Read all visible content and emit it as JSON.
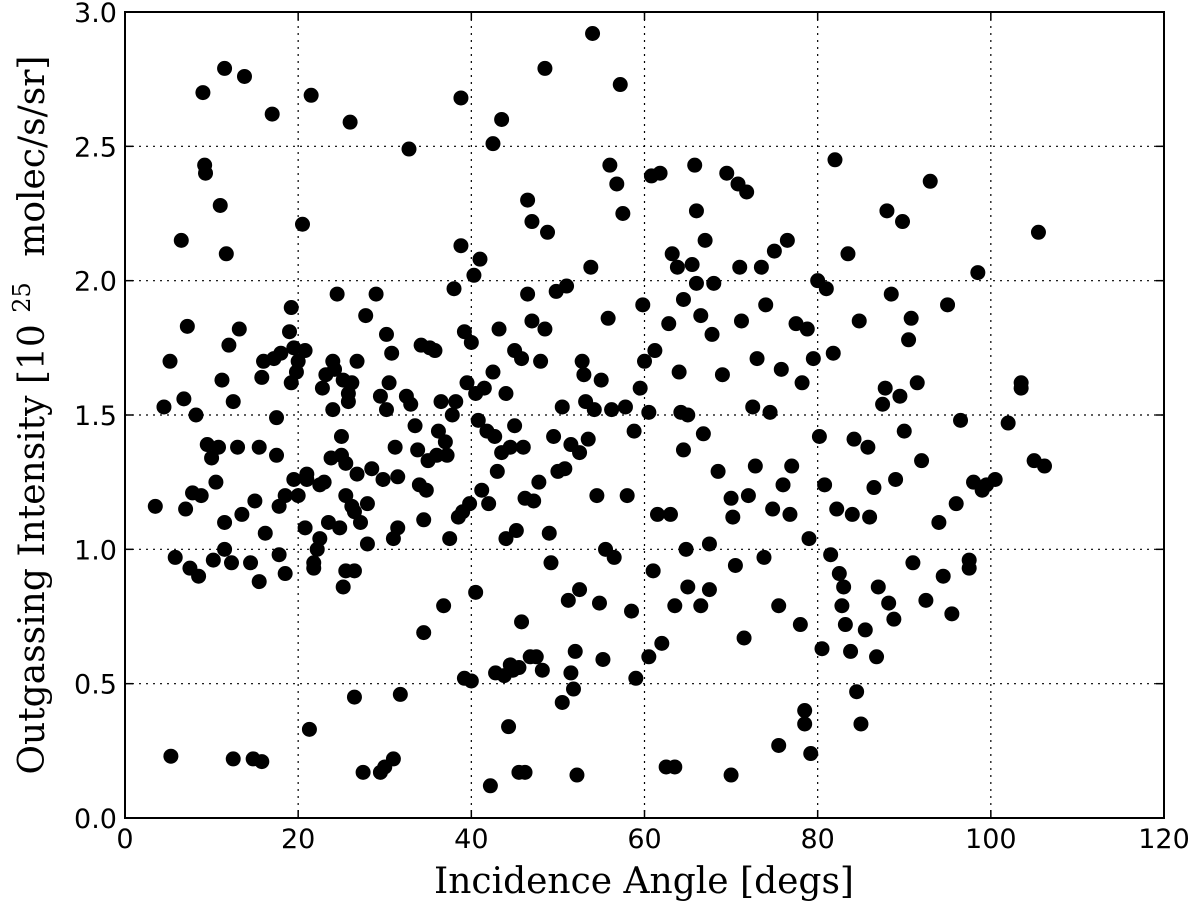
{
  "chart_data": {
    "type": "scatter",
    "title": "",
    "xlabel": "Incidence Angle [degs]",
    "ylabel_main": "Outgassing Intensity [10",
    "ylabel_sup": "25",
    "ylabel_tail": "molec/s/sr]",
    "xlim": [
      0,
      120
    ],
    "ylim": [
      0.0,
      3.0
    ],
    "xticks": [
      0,
      20,
      40,
      60,
      80,
      100,
      120
    ],
    "xtick_labels": [
      "0",
      "20",
      "40",
      "60",
      "80",
      "100",
      "120"
    ],
    "yticks": [
      0.0,
      0.5,
      1.0,
      1.5,
      2.0,
      2.5,
      3.0
    ],
    "ytick_labels": [
      "0.0",
      "0.5",
      "1.0",
      "1.5",
      "2.0",
      "2.5",
      "3.0"
    ],
    "grid": true,
    "marker_color": "#000000",
    "points": [
      [
        3.5,
        1.16
      ],
      [
        4.5,
        1.53
      ],
      [
        5.2,
        1.7
      ],
      [
        5.3,
        0.23
      ],
      [
        5.8,
        0.97
      ],
      [
        6.5,
        2.15
      ],
      [
        6.8,
        1.56
      ],
      [
        7.0,
        1.15
      ],
      [
        7.2,
        1.83
      ],
      [
        7.5,
        0.93
      ],
      [
        7.8,
        1.21
      ],
      [
        8.2,
        1.5
      ],
      [
        8.5,
        0.9
      ],
      [
        8.8,
        1.2
      ],
      [
        9.0,
        2.7
      ],
      [
        9.2,
        2.43
      ],
      [
        9.3,
        2.4
      ],
      [
        9.5,
        1.39
      ],
      [
        10.0,
        1.34
      ],
      [
        10.2,
        0.96
      ],
      [
        10.5,
        1.25
      ],
      [
        10.8,
        1.38
      ],
      [
        11.0,
        2.28
      ],
      [
        11.2,
        1.63
      ],
      [
        11.5,
        1.1
      ],
      [
        11.5,
        2.79
      ],
      [
        11.5,
        1.0
      ],
      [
        11.7,
        2.1
      ],
      [
        12.0,
        1.76
      ],
      [
        12.3,
        0.95
      ],
      [
        12.5,
        1.55
      ],
      [
        12.5,
        0.22
      ],
      [
        13.0,
        1.38
      ],
      [
        13.2,
        1.82
      ],
      [
        13.5,
        1.13
      ],
      [
        13.8,
        2.76
      ],
      [
        14.5,
        0.95
      ],
      [
        14.8,
        0.22
      ],
      [
        15.0,
        1.18
      ],
      [
        15.5,
        0.88
      ],
      [
        15.5,
        1.38
      ],
      [
        15.8,
        0.21
      ],
      [
        15.8,
        1.64
      ],
      [
        16.0,
        1.7
      ],
      [
        16.2,
        1.06
      ],
      [
        17.0,
        2.62
      ],
      [
        17.2,
        1.71
      ],
      [
        17.5,
        1.35
      ],
      [
        17.5,
        1.49
      ],
      [
        17.8,
        1.16
      ],
      [
        17.8,
        0.98
      ],
      [
        18.0,
        1.73
      ],
      [
        18.5,
        1.2
      ],
      [
        18.5,
        0.91
      ],
      [
        19.0,
        1.81
      ],
      [
        19.2,
        1.9
      ],
      [
        19.2,
        1.62
      ],
      [
        19.5,
        1.26
      ],
      [
        19.5,
        1.75
      ],
      [
        19.8,
        1.66
      ],
      [
        20.0,
        1.2
      ],
      [
        20.0,
        1.7
      ],
      [
        20.5,
        2.21
      ],
      [
        20.8,
        1.74
      ],
      [
        20.8,
        1.08
      ],
      [
        21.0,
        1.28
      ],
      [
        21.0,
        1.26
      ],
      [
        21.3,
        0.33
      ],
      [
        21.5,
        2.69
      ],
      [
        21.8,
        0.95
      ],
      [
        21.8,
        0.93
      ],
      [
        22.2,
        1.0
      ],
      [
        22.5,
        1.24
      ],
      [
        22.5,
        1.04
      ],
      [
        22.8,
        1.6
      ],
      [
        23.0,
        1.25
      ],
      [
        23.2,
        1.65
      ],
      [
        23.5,
        1.1
      ],
      [
        23.8,
        1.34
      ],
      [
        24.0,
        1.7
      ],
      [
        24.0,
        1.52
      ],
      [
        24.2,
        1.67
      ],
      [
        24.5,
        1.95
      ],
      [
        24.8,
        1.08
      ],
      [
        25.0,
        1.35
      ],
      [
        25.0,
        1.42
      ],
      [
        25.2,
        1.63
      ],
      [
        25.2,
        0.86
      ],
      [
        25.5,
        1.2
      ],
      [
        25.5,
        0.92
      ],
      [
        25.5,
        1.32
      ],
      [
        25.8,
        1.58
      ],
      [
        25.8,
        1.55
      ],
      [
        26.0,
        2.59
      ],
      [
        26.2,
        1.62
      ],
      [
        26.2,
        1.16
      ],
      [
        26.5,
        0.45
      ],
      [
        26.5,
        1.14
      ],
      [
        26.5,
        0.92
      ],
      [
        26.8,
        1.7
      ],
      [
        26.8,
        1.28
      ],
      [
        27.2,
        1.1
      ],
      [
        27.5,
        0.17
      ],
      [
        27.8,
        1.87
      ],
      [
        28.0,
        1.17
      ],
      [
        28.0,
        1.02
      ],
      [
        28.5,
        1.3
      ],
      [
        29.0,
        1.95
      ],
      [
        29.5,
        1.57
      ],
      [
        29.5,
        0.17
      ],
      [
        29.8,
        1.26
      ],
      [
        30.0,
        0.19
      ],
      [
        30.2,
        1.8
      ],
      [
        30.2,
        1.52
      ],
      [
        30.5,
        1.62
      ],
      [
        30.8,
        1.73
      ],
      [
        31.0,
        0.22
      ],
      [
        31.0,
        1.04
      ],
      [
        31.2,
        1.38
      ],
      [
        31.5,
        1.27
      ],
      [
        31.5,
        1.08
      ],
      [
        31.8,
        0.46
      ],
      [
        32.5,
        1.57
      ],
      [
        32.8,
        2.49
      ],
      [
        33.0,
        1.54
      ],
      [
        33.5,
        1.46
      ],
      [
        33.8,
        1.37
      ],
      [
        34.0,
        1.24
      ],
      [
        34.2,
        1.76
      ],
      [
        34.5,
        0.69
      ],
      [
        34.5,
        1.11
      ],
      [
        34.8,
        1.22
      ],
      [
        35.0,
        1.33
      ],
      [
        35.2,
        1.75
      ],
      [
        35.8,
        1.74
      ],
      [
        36.0,
        1.35
      ],
      [
        36.2,
        1.44
      ],
      [
        36.5,
        1.55
      ],
      [
        36.8,
        0.79
      ],
      [
        37.0,
        1.4
      ],
      [
        37.2,
        1.35
      ],
      [
        37.5,
        1.04
      ],
      [
        37.8,
        1.5
      ],
      [
        38.0,
        1.97
      ],
      [
        38.2,
        1.55
      ],
      [
        38.5,
        1.12
      ],
      [
        38.8,
        2.68
      ],
      [
        38.8,
        2.13
      ],
      [
        39.0,
        1.14
      ],
      [
        39.2,
        1.81
      ],
      [
        39.2,
        0.52
      ],
      [
        39.5,
        1.62
      ],
      [
        39.8,
        1.17
      ],
      [
        40.0,
        1.77
      ],
      [
        40.0,
        0.51
      ],
      [
        40.3,
        2.02
      ],
      [
        40.5,
        1.58
      ],
      [
        40.5,
        0.84
      ],
      [
        40.8,
        1.48
      ],
      [
        41.0,
        2.08
      ],
      [
        41.2,
        1.22
      ],
      [
        41.5,
        1.6
      ],
      [
        41.8,
        1.44
      ],
      [
        42.0,
        1.17
      ],
      [
        42.2,
        0.12
      ],
      [
        42.5,
        1.66
      ],
      [
        42.5,
        2.51
      ],
      [
        42.7,
        1.42
      ],
      [
        42.8,
        0.54
      ],
      [
        43.0,
        1.29
      ],
      [
        43.2,
        1.82
      ],
      [
        43.5,
        2.6
      ],
      [
        43.5,
        1.36
      ],
      [
        43.8,
        0.53
      ],
      [
        44.0,
        1.58
      ],
      [
        44.0,
        1.04
      ],
      [
        44.3,
        0.34
      ],
      [
        44.5,
        0.57
      ],
      [
        44.5,
        1.38
      ],
      [
        44.8,
        0.55
      ],
      [
        45.0,
        1.74
      ],
      [
        45.0,
        1.46
      ],
      [
        45.2,
        1.07
      ],
      [
        45.5,
        0.17
      ],
      [
        45.5,
        0.56
      ],
      [
        45.8,
        0.73
      ],
      [
        45.8,
        1.71
      ],
      [
        46.0,
        1.38
      ],
      [
        46.2,
        0.17
      ],
      [
        46.2,
        1.19
      ],
      [
        46.5,
        2.3
      ],
      [
        46.5,
        1.95
      ],
      [
        46.8,
        0.6
      ],
      [
        47.0,
        1.85
      ],
      [
        47.0,
        2.22
      ],
      [
        47.2,
        1.18
      ],
      [
        47.5,
        0.6
      ],
      [
        47.8,
        1.25
      ],
      [
        48.0,
        1.7
      ],
      [
        48.2,
        0.55
      ],
      [
        48.5,
        1.82
      ],
      [
        48.5,
        2.79
      ],
      [
        48.8,
        2.18
      ],
      [
        49.0,
        1.06
      ],
      [
        49.2,
        0.95
      ],
      [
        49.5,
        1.42
      ],
      [
        49.8,
        1.96
      ],
      [
        50.0,
        1.29
      ],
      [
        50.5,
        1.53
      ],
      [
        50.5,
        0.43
      ],
      [
        50.8,
        1.3
      ],
      [
        51.0,
        1.98
      ],
      [
        51.2,
        0.81
      ],
      [
        51.5,
        0.54
      ],
      [
        51.5,
        1.39
      ],
      [
        51.8,
        0.48
      ],
      [
        52.0,
        0.62
      ],
      [
        52.2,
        0.16
      ],
      [
        52.5,
        1.36
      ],
      [
        52.5,
        0.85
      ],
      [
        52.8,
        1.7
      ],
      [
        53.0,
        1.65
      ],
      [
        53.2,
        1.55
      ],
      [
        53.5,
        1.41
      ],
      [
        53.8,
        2.05
      ],
      [
        54.0,
        2.92
      ],
      [
        54.2,
        1.52
      ],
      [
        54.5,
        1.2
      ],
      [
        54.8,
        0.8
      ],
      [
        55.0,
        1.63
      ],
      [
        55.2,
        0.59
      ],
      [
        55.5,
        1.0
      ],
      [
        55.8,
        1.86
      ],
      [
        56.0,
        2.43
      ],
      [
        56.2,
        1.52
      ],
      [
        56.5,
        0.97
      ],
      [
        56.8,
        2.36
      ],
      [
        57.2,
        2.73
      ],
      [
        57.5,
        2.25
      ],
      [
        57.8,
        1.53
      ],
      [
        58.0,
        1.2
      ],
      [
        58.5,
        0.77
      ],
      [
        58.8,
        1.44
      ],
      [
        59.0,
        0.52
      ],
      [
        59.5,
        1.6
      ],
      [
        59.8,
        1.91
      ],
      [
        60.0,
        1.7
      ],
      [
        60.5,
        1.51
      ],
      [
        60.5,
        0.6
      ],
      [
        60.8,
        2.39
      ],
      [
        61.0,
        0.92
      ],
      [
        61.2,
        1.74
      ],
      [
        61.5,
        1.13
      ],
      [
        61.8,
        2.4
      ],
      [
        62.0,
        0.65
      ],
      [
        62.5,
        0.19
      ],
      [
        62.8,
        1.84
      ],
      [
        63.0,
        1.13
      ],
      [
        63.2,
        2.1
      ],
      [
        63.5,
        0.79
      ],
      [
        63.5,
        0.19
      ],
      [
        63.8,
        2.05
      ],
      [
        64.0,
        1.66
      ],
      [
        64.2,
        1.51
      ],
      [
        64.5,
        1.37
      ],
      [
        64.5,
        1.93
      ],
      [
        64.8,
        1.0
      ],
      [
        65.0,
        1.5
      ],
      [
        65.0,
        0.86
      ],
      [
        65.5,
        2.06
      ],
      [
        65.8,
        2.43
      ],
      [
        66.0,
        1.99
      ],
      [
        66.0,
        2.26
      ],
      [
        66.5,
        0.79
      ],
      [
        66.5,
        1.87
      ],
      [
        66.8,
        1.43
      ],
      [
        67.0,
        2.15
      ],
      [
        67.5,
        0.85
      ],
      [
        67.5,
        1.02
      ],
      [
        67.8,
        1.8
      ],
      [
        68.0,
        1.99
      ],
      [
        68.5,
        1.29
      ],
      [
        69.0,
        1.65
      ],
      [
        69.5,
        2.4
      ],
      [
        70.0,
        0.16
      ],
      [
        70.0,
        1.19
      ],
      [
        70.2,
        1.12
      ],
      [
        70.5,
        0.94
      ],
      [
        70.8,
        2.36
      ],
      [
        71.0,
        2.05
      ],
      [
        71.2,
        1.85
      ],
      [
        71.5,
        0.67
      ],
      [
        71.8,
        2.33
      ],
      [
        72.0,
        1.2
      ],
      [
        72.5,
        1.53
      ],
      [
        72.8,
        1.31
      ],
      [
        73.0,
        1.71
      ],
      [
        73.5,
        2.05
      ],
      [
        73.8,
        0.97
      ],
      [
        74.0,
        1.91
      ],
      [
        74.5,
        1.51
      ],
      [
        74.8,
        1.15
      ],
      [
        75.0,
        2.11
      ],
      [
        75.5,
        0.27
      ],
      [
        75.5,
        0.79
      ],
      [
        75.8,
        1.67
      ],
      [
        76.0,
        1.24
      ],
      [
        76.5,
        2.15
      ],
      [
        76.8,
        1.13
      ],
      [
        77.0,
        1.31
      ],
      [
        77.5,
        1.84
      ],
      [
        78.0,
        0.72
      ],
      [
        78.2,
        1.62
      ],
      [
        78.5,
        0.4
      ],
      [
        78.5,
        0.35
      ],
      [
        78.8,
        1.82
      ],
      [
        79.0,
        1.04
      ],
      [
        79.2,
        0.24
      ],
      [
        79.5,
        1.71
      ],
      [
        80.0,
        2.0
      ],
      [
        80.2,
        1.42
      ],
      [
        80.5,
        0.63
      ],
      [
        80.8,
        1.24
      ],
      [
        81.0,
        1.97
      ],
      [
        81.5,
        0.98
      ],
      [
        81.8,
        1.73
      ],
      [
        82.0,
        2.45
      ],
      [
        82.2,
        1.15
      ],
      [
        82.5,
        0.91
      ],
      [
        82.8,
        0.79
      ],
      [
        83.0,
        0.86
      ],
      [
        83.2,
        0.72
      ],
      [
        83.5,
        2.1
      ],
      [
        83.8,
        0.62
      ],
      [
        84.0,
        1.13
      ],
      [
        84.2,
        1.41
      ],
      [
        84.5,
        0.47
      ],
      [
        84.8,
        1.85
      ],
      [
        85.0,
        0.35
      ],
      [
        85.5,
        0.7
      ],
      [
        85.8,
        1.38
      ],
      [
        86.0,
        1.12
      ],
      [
        86.5,
        1.23
      ],
      [
        86.8,
        0.6
      ],
      [
        87.0,
        0.86
      ],
      [
        87.5,
        1.54
      ],
      [
        87.8,
        1.6
      ],
      [
        88.0,
        2.26
      ],
      [
        88.2,
        0.8
      ],
      [
        88.5,
        1.95
      ],
      [
        88.8,
        0.74
      ],
      [
        89.0,
        1.26
      ],
      [
        89.5,
        1.57
      ],
      [
        89.8,
        2.22
      ],
      [
        90.0,
        1.44
      ],
      [
        90.5,
        1.78
      ],
      [
        90.8,
        1.86
      ],
      [
        91.0,
        0.95
      ],
      [
        91.5,
        1.62
      ],
      [
        92.0,
        1.33
      ],
      [
        92.5,
        0.81
      ],
      [
        93.0,
        2.37
      ],
      [
        94.0,
        1.1
      ],
      [
        94.5,
        0.9
      ],
      [
        95.0,
        1.91
      ],
      [
        95.5,
        0.76
      ],
      [
        96.0,
        1.17
      ],
      [
        96.5,
        1.48
      ],
      [
        97.5,
        0.96
      ],
      [
        97.5,
        0.93
      ],
      [
        98.0,
        1.25
      ],
      [
        98.5,
        2.03
      ],
      [
        99.0,
        1.22
      ],
      [
        99.5,
        1.24
      ],
      [
        100.5,
        1.26
      ],
      [
        102.0,
        1.47
      ],
      [
        103.5,
        1.62
      ],
      [
        103.5,
        1.6
      ],
      [
        105.0,
        1.33
      ],
      [
        105.5,
        2.18
      ],
      [
        106.2,
        1.31
      ]
    ]
  }
}
